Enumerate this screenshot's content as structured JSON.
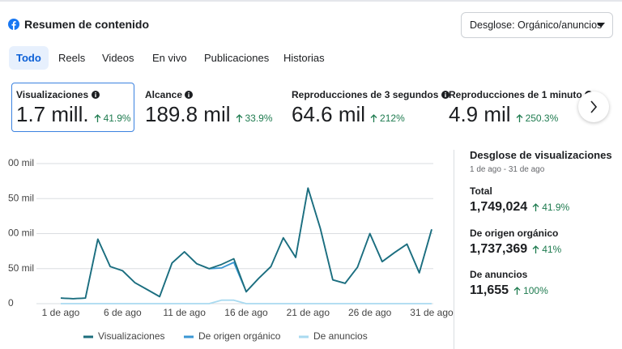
{
  "header": {
    "title": "Resumen de contenido",
    "dropdown": "Desglose: Orgánico/anuncios"
  },
  "tabs": [
    "Todo",
    "Reels",
    "Videos",
    "En vivo",
    "Publicaciones",
    "Historias"
  ],
  "metrics": [
    {
      "label": "Visualizaciones",
      "value": "1.7 mill.",
      "change": "41.9%"
    },
    {
      "label": "Alcance",
      "value": "189.8 mil",
      "change": "33.9%"
    },
    {
      "label": "Reproducciones de 3 segundos",
      "value": "64.6 mil",
      "change": "212%"
    },
    {
      "label": "Reproducciones de 1 minuto",
      "value": "4.9 mil",
      "change": "250.3%"
    }
  ],
  "chart_data": {
    "type": "line",
    "categories": [
      "1 de ago",
      null,
      null,
      null,
      null,
      "6 de ago",
      null,
      null,
      null,
      null,
      "11 de ago",
      null,
      null,
      null,
      null,
      "16 de ago",
      null,
      null,
      null,
      null,
      "21 de ago",
      null,
      null,
      null,
      null,
      "26 de ago",
      null,
      null,
      null,
      null,
      "31 de ago"
    ],
    "series": [
      {
        "name": "Visualizaciones",
        "color": "#1d6e7c",
        "values": [
          8000,
          7000,
          8000,
          92000,
          53000,
          47000,
          30000,
          20000,
          10000,
          58000,
          74000,
          57000,
          50000,
          56000,
          64000,
          17000,
          36000,
          53000,
          94000,
          66000,
          165000,
          107000,
          34000,
          29000,
          52000,
          100000,
          60000,
          73000,
          85000,
          44000,
          106000
        ]
      },
      {
        "name": "De origen orgánico",
        "color": "#3b97d3",
        "values": [
          8000,
          7000,
          8000,
          92000,
          53000,
          47000,
          30000,
          20000,
          10000,
          58000,
          74000,
          57000,
          50000,
          51000,
          59000,
          17000,
          36000,
          53000,
          94000,
          66000,
          165000,
          107000,
          34000,
          29000,
          52000,
          100000,
          60000,
          73000,
          85000,
          44000,
          106000
        ]
      },
      {
        "name": "De anuncios",
        "color": "#a9daf0",
        "values": [
          0,
          0,
          0,
          0,
          0,
          0,
          0,
          0,
          0,
          0,
          0,
          0,
          0,
          5000,
          5000,
          0,
          0,
          0,
          0,
          0,
          0,
          0,
          0,
          0,
          0,
          0,
          0,
          0,
          0,
          0,
          0
        ]
      }
    ],
    "ylim": [
      0,
      200000
    ],
    "yticks": [
      {
        "value": 0,
        "label": "0"
      },
      {
        "value": 50000,
        "label": "50 mil"
      },
      {
        "value": 100000,
        "label": "00 mil"
      },
      {
        "value": 150000,
        "label": "50 mil"
      },
      {
        "value": 200000,
        "label": "00 mil"
      }
    ],
    "grid": true
  },
  "breakdown": {
    "title": "Desglose de visualizaciones",
    "date_range": "1 de ago - 31 de ago",
    "items": [
      {
        "label": "Total",
        "value": "1,749,024",
        "change": "41.9%"
      },
      {
        "label": "De origen orgánico",
        "value": "1,737,369",
        "change": "41%"
      },
      {
        "label": "De anuncios",
        "value": "11,655",
        "change": "100%"
      }
    ]
  }
}
